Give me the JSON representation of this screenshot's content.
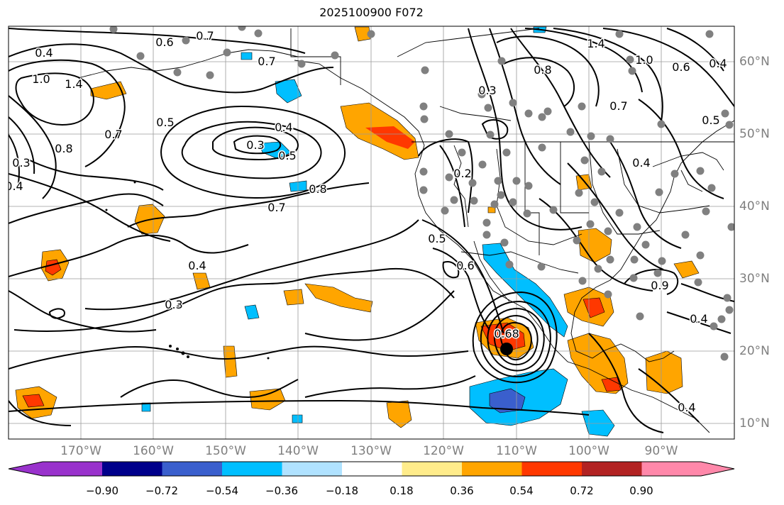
{
  "title": "2025100900 F072",
  "map": {
    "lon_labels": [
      "170°W",
      "160°W",
      "150°W",
      "140°W",
      "130°W",
      "120°W",
      "110°W",
      "100°W",
      "90°W"
    ],
    "lat_labels": [
      "60°N",
      "50°N",
      "40°N",
      "30°N",
      "20°N",
      "10°N"
    ],
    "contour_labels": [
      "0.4",
      "0.6",
      "0.7",
      "0.7",
      "1.0",
      "1.4",
      "0.5",
      "0.7",
      "0.8",
      "0.3",
      "0.4",
      "0.3",
      "0.4",
      "0.5",
      "0.8",
      "0.7",
      "0.4",
      "0.3",
      "1.4",
      "0.8",
      "1.0",
      "0.3",
      "0.7",
      "0.5",
      "0.6",
      "0.4",
      "0.2",
      "0.5",
      "0.6",
      "0.4",
      "0.4",
      "0.9",
      "0.4",
      "0.68"
    ],
    "grid_lines": true,
    "land_borders": true
  },
  "colorbar": {
    "ticks": [
      "−0.90",
      "−0.72",
      "−0.54",
      "−0.36",
      "−0.18",
      "0.18",
      "0.36",
      "0.54",
      "0.72",
      "0.90"
    ],
    "colors": [
      "#9932cc",
      "#00008b",
      "#3a5fcd",
      "#00bfff",
      "#b0e2ff",
      "#ffffff",
      "#ffec8b",
      "#ffa500",
      "#ff3800",
      "#b22222",
      "#ff88aa"
    ]
  }
}
